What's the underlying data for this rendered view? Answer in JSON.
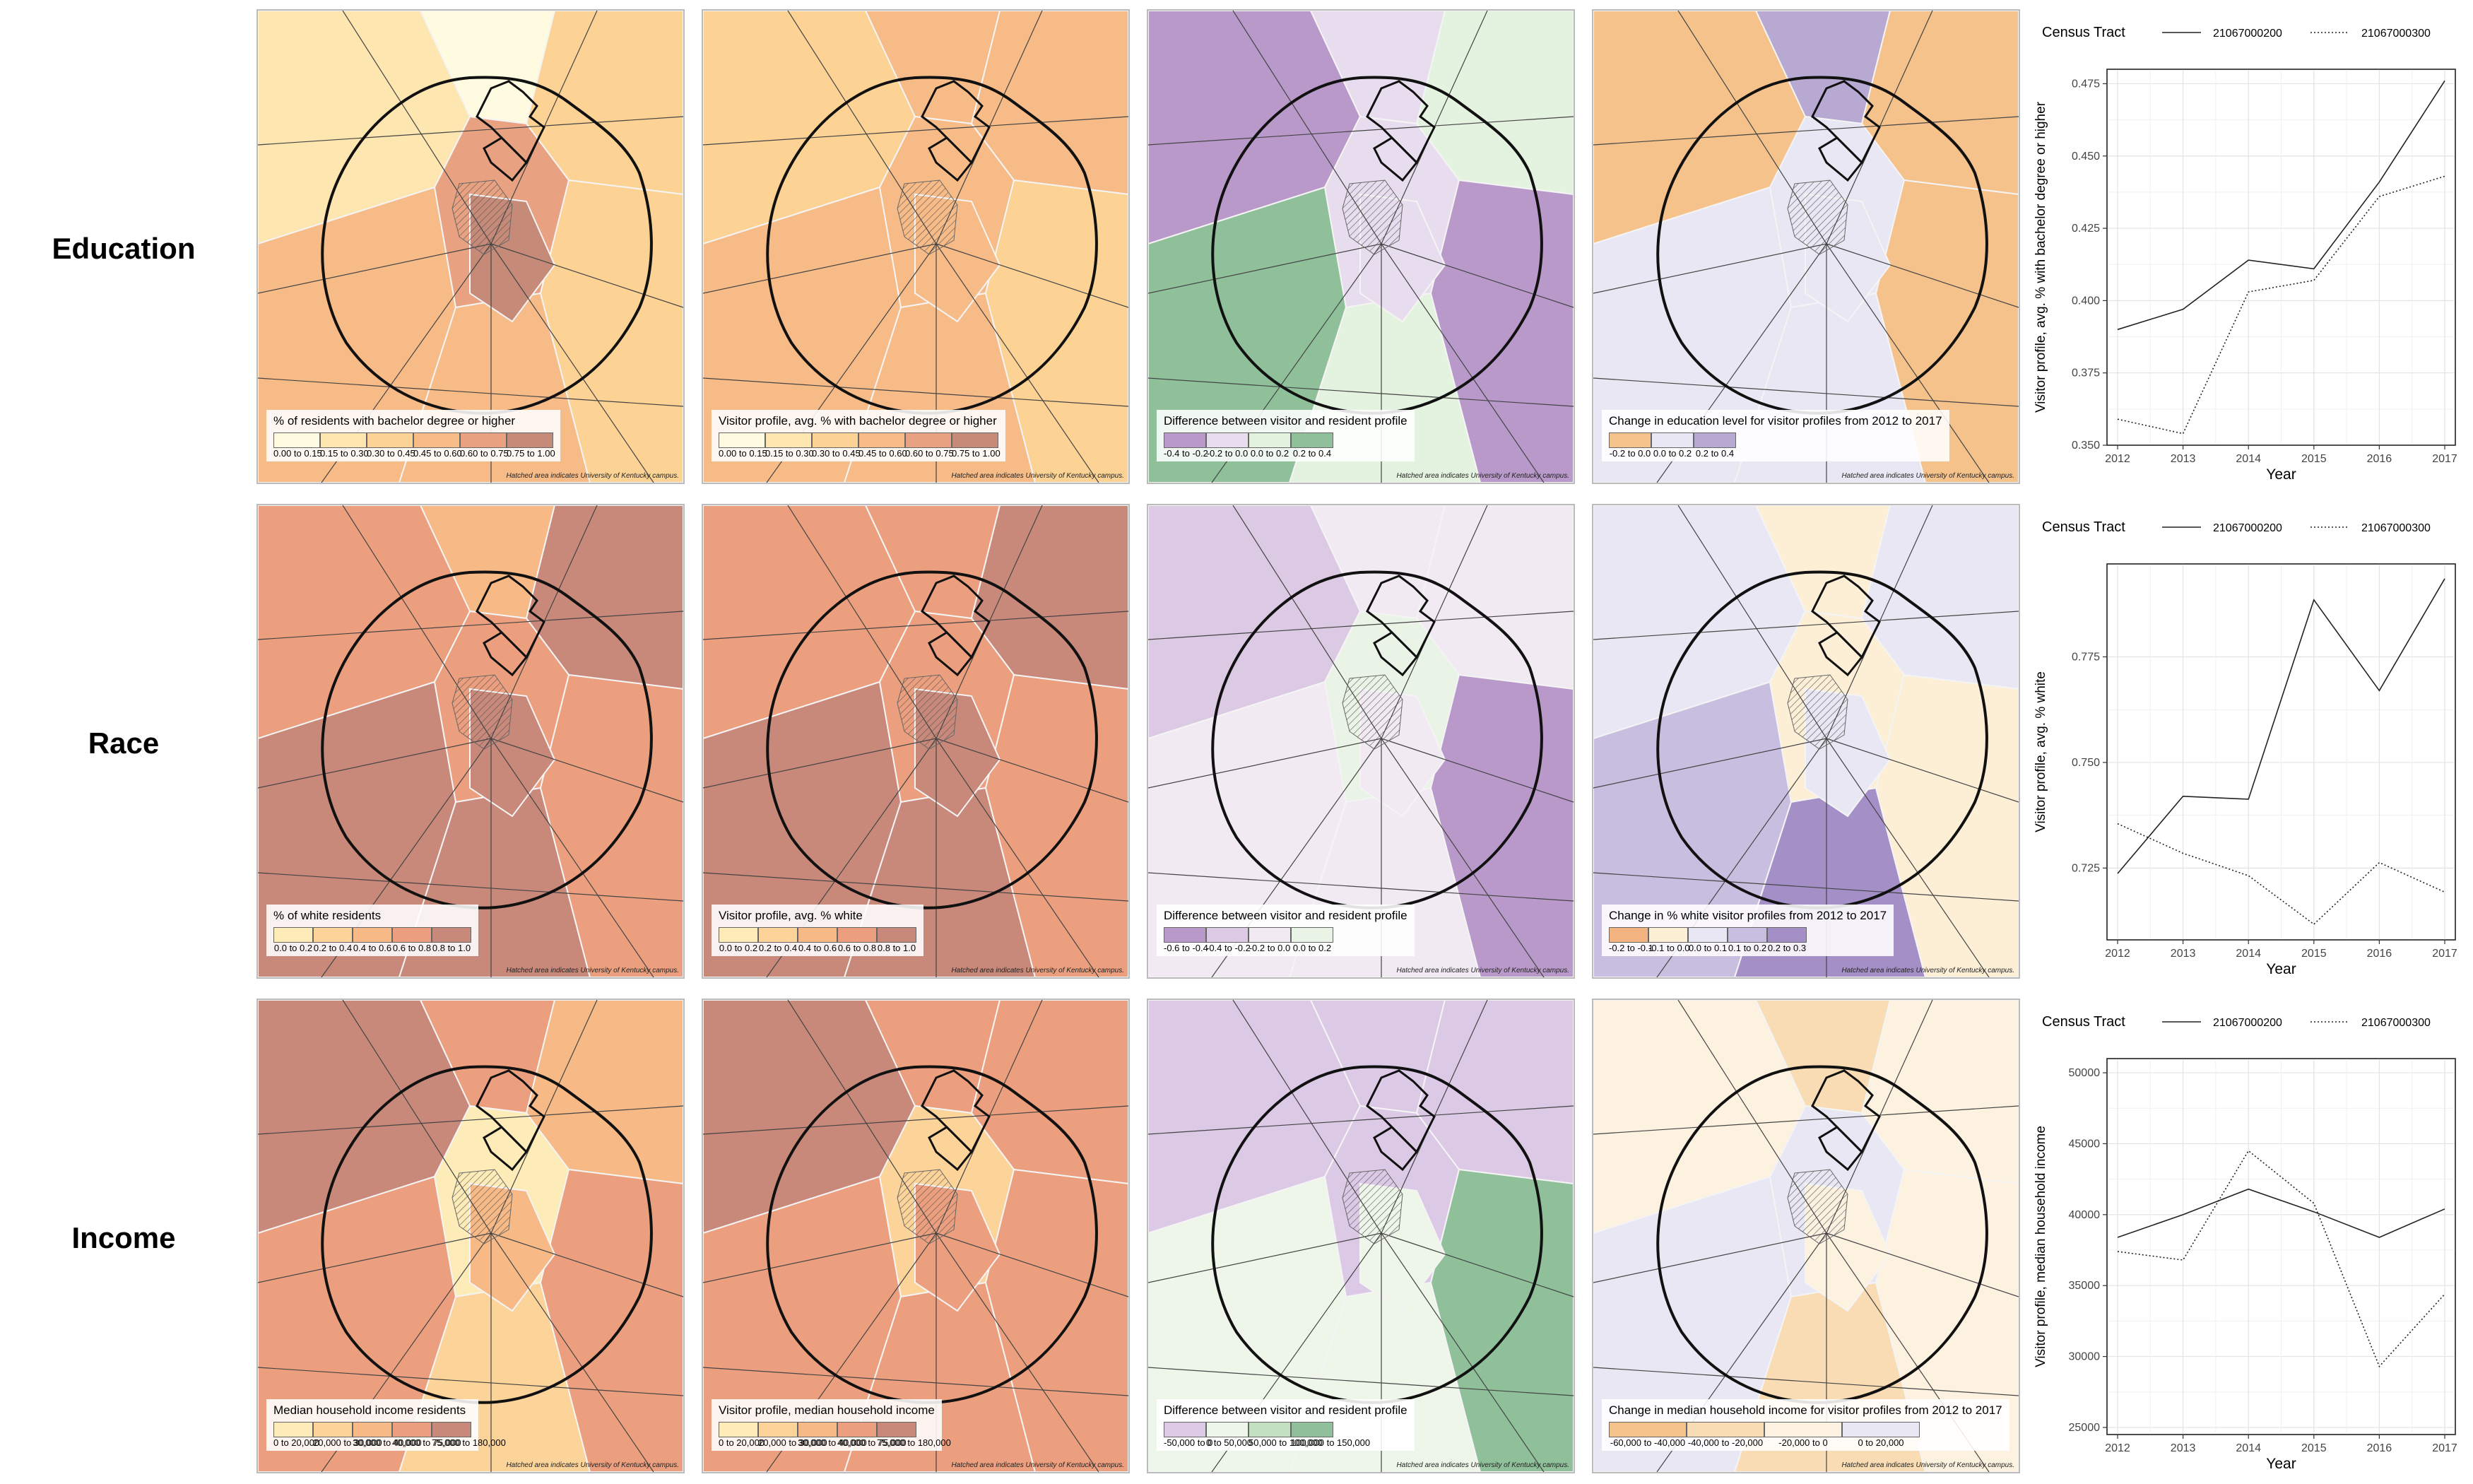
{
  "rows": [
    {
      "label": "Education",
      "maps": [
        {
          "legend_title": "% of residents with bachelor degree or higher",
          "classes": [
            "0.00 to 0.15",
            "0.15 to 0.30",
            "0.30 to 0.45",
            "0.45 to 0.60",
            "0.60 to 0.75",
            "0.75 to 1.00"
          ],
          "colors": [
            "#fffbe0",
            "#fde6b0",
            "#fcd394",
            "#f7bb88",
            "#e8a282",
            "#c58a78"
          ],
          "note": "Hatched area indicates University of Kentucky campus."
        },
        {
          "legend_title": "Visitor profile, avg. % with bachelor degree or higher",
          "classes": [
            "0.00 to 0.15",
            "0.15 to 0.30",
            "0.30 to 0.45",
            "0.45 to 0.60",
            "0.60 to 0.75",
            "0.75 to 1.00"
          ],
          "colors": [
            "#fffbe0",
            "#fde6b0",
            "#fcd394",
            "#f7bb88",
            "#e8a282",
            "#c58a78"
          ],
          "note": "Hatched area indicates University of Kentucky campus."
        },
        {
          "legend_title": "Difference between visitor and resident profile",
          "classes": [
            "-0.4 to -0.2",
            "-0.2 to 0.0",
            "0.0 to 0.2",
            "0.2 to 0.4"
          ],
          "colors": [
            "#b899c9",
            "#e8ddee",
            "#e4f3df",
            "#8fc09a"
          ],
          "note": "Hatched area indicates University of Kentucky campus."
        },
        {
          "legend_title": "Change in education level for visitor profiles from 2012 to 2017",
          "classes": [
            "-0.2 to 0.0",
            "0.0 to 0.2",
            "0.2 to 0.4"
          ],
          "colors": [
            "#f5c28c",
            "#e8e7f3",
            "#b7a9d2"
          ],
          "note": "Hatched area indicates University of Kentucky campus."
        }
      ]
    },
    {
      "label": "Race",
      "maps": [
        {
          "legend_title": "% of white residents",
          "classes": [
            "0.0 to 0.2",
            "0.2 to 0.4",
            "0.4 to 0.6",
            "0.6 to 0.8",
            "0.8 to 1.0"
          ],
          "colors": [
            "#fdebb8",
            "#fcd49a",
            "#f7ba86",
            "#ec9f7e",
            "#c8897a"
          ],
          "note": "Hatched area indicates University of Kentucky campus."
        },
        {
          "legend_title": "Visitor profile, avg. % white",
          "classes": [
            "0.0 to 0.2",
            "0.2 to 0.4",
            "0.4 to 0.6",
            "0.6 to 0.8",
            "0.8 to 1.0"
          ],
          "colors": [
            "#fdebb8",
            "#fcd49a",
            "#f7ba86",
            "#ec9f7e",
            "#c8897a"
          ],
          "note": "Hatched area indicates University of Kentucky campus."
        },
        {
          "legend_title": "Difference between visitor and resident profile",
          "classes": [
            "-0.6 to -0.4",
            "-0.4 to -0.2",
            "-0.2 to 0.0",
            "0.0 to 0.2"
          ],
          "colors": [
            "#b899c9",
            "#dcc9e3",
            "#f1eaf3",
            "#eaf4e6"
          ],
          "note": "Hatched area indicates University of Kentucky campus."
        },
        {
          "legend_title": "Change in % white visitor profiles from 2012 to 2017",
          "classes": [
            "-0.2 to -0.1",
            "-0.1 to 0.0",
            "0.0 to 0.1",
            "0.1 to 0.2",
            "0.2 to 0.3"
          ],
          "colors": [
            "#f2b380",
            "#fdeed6",
            "#e8e7f3",
            "#c8bfe0",
            "#a48fc7"
          ],
          "note": "Hatched area indicates University of Kentucky campus."
        }
      ]
    },
    {
      "label": "Income",
      "maps": [
        {
          "legend_title": "Median household income residents",
          "classes": [
            "0 to 20,000",
            "20,000 to 30,000",
            "30,000 to 40,000",
            "40,000 to 75,000",
            "75,000 to 180,000"
          ],
          "colors": [
            "#fdebb8",
            "#fcd49a",
            "#f7ba86",
            "#ec9f7e",
            "#c8897a"
          ],
          "note": "Hatched area indicates University of Kentucky campus."
        },
        {
          "legend_title": "Visitor profile, median household income",
          "classes": [
            "0 to 20,000",
            "20,000 to 30,000",
            "30,000 to 40,000",
            "40,000 to 75,000",
            "75,000 to 180,000"
          ],
          "colors": [
            "#fdebb8",
            "#fcd49a",
            "#f7ba86",
            "#ec9f7e",
            "#c8897a"
          ],
          "note": "Hatched area indicates University of Kentucky campus."
        },
        {
          "legend_title": "Difference between visitor and resident profile",
          "classes": [
            "-50,000 to 0",
            "0 to 50,000",
            "50,000 to 100,000",
            "100,000 to 150,000"
          ],
          "colors": [
            "#dcc9e6",
            "#eef6e9",
            "#c4e0c2",
            "#8fc09a"
          ],
          "note": "Hatched area indicates University of Kentucky campus."
        },
        {
          "legend_title": "Change in median household income for visitor profiles from 2012 to 2017",
          "classes": [
            "-60,000 to -40,000",
            "-40,000 to -20,000",
            "-20,000 to 0",
            "0 to 20,000"
          ],
          "colors": [
            "#f5c28c",
            "#f9dcb4",
            "#fdf1e0",
            "#e8e7f3"
          ],
          "note": "Hatched area indicates University of Kentucky campus."
        }
      ]
    }
  ],
  "chart_data": [
    {
      "type": "line",
      "legend_title": "Census Tract",
      "legend_position": "top",
      "x": [
        2012,
        2013,
        2014,
        2015,
        2016,
        2017
      ],
      "series": [
        {
          "name": "21067000200",
          "style": "solid",
          "values": [
            0.39,
            0.397,
            0.414,
            0.411,
            0.441,
            0.476
          ]
        },
        {
          "name": "21067000300",
          "style": "dotted",
          "values": [
            0.359,
            0.354,
            0.403,
            0.407,
            0.436,
            0.443
          ]
        }
      ],
      "xlabel": "Year",
      "ylabel": "Visitor profile, avg. % with bachelor degree or higher",
      "ylim": [
        0.35,
        0.48
      ],
      "yticks": [
        "0.350",
        "0.375",
        "0.400",
        "0.425",
        "0.450",
        "0.475"
      ],
      "ytick_values": [
        0.35,
        0.375,
        0.4,
        0.425,
        0.45,
        0.475
      ],
      "xticks": [
        "2012",
        "2013",
        "2014",
        "2015",
        "2016",
        "2017"
      ],
      "grid": true
    },
    {
      "type": "line",
      "legend_title": "Census Tract",
      "legend_position": "top",
      "x": [
        2012,
        2013,
        2014,
        2015,
        2016,
        2017
      ],
      "series": [
        {
          "name": "21067000200",
          "style": "solid",
          "values": [
            0.7237,
            0.742,
            0.7413,
            0.7885,
            0.767,
            0.7935
          ]
        },
        {
          "name": "21067000300",
          "style": "dotted",
          "values": [
            0.7355,
            0.7285,
            0.7232,
            0.7117,
            0.7263,
            0.7193
          ]
        }
      ],
      "xlabel": "Year",
      "ylabel": "Visitor profile, avg. % white",
      "ylim": [
        0.708,
        0.797
      ],
      "yticks": [
        "0.725",
        "0.750",
        "0.775"
      ],
      "ytick_values": [
        0.725,
        0.75,
        0.775
      ],
      "xticks": [
        "2012",
        "2013",
        "2014",
        "2015",
        "2016",
        "2017"
      ],
      "grid": true
    },
    {
      "type": "line",
      "legend_title": "Census Tract",
      "legend_position": "top",
      "x": [
        2012,
        2013,
        2014,
        2015,
        2016,
        2017
      ],
      "series": [
        {
          "name": "21067000200",
          "style": "solid",
          "values": [
            38400,
            40000,
            41800,
            40200,
            38400,
            40400
          ]
        },
        {
          "name": "21067000300",
          "style": "dotted",
          "values": [
            37400,
            36800,
            44500,
            40800,
            29300,
            34400
          ]
        }
      ],
      "xlabel": "Year",
      "ylabel": "Visitor profile, median household income",
      "ylim": [
        24500,
        51000
      ],
      "yticks": [
        "25000",
        "30000",
        "35000",
        "40000",
        "45000",
        "50000"
      ],
      "ytick_values": [
        25000,
        30000,
        35000,
        40000,
        45000,
        50000
      ],
      "xticks": [
        "2012",
        "2013",
        "2014",
        "2015",
        "2016",
        "2017"
      ],
      "grid": true
    }
  ]
}
